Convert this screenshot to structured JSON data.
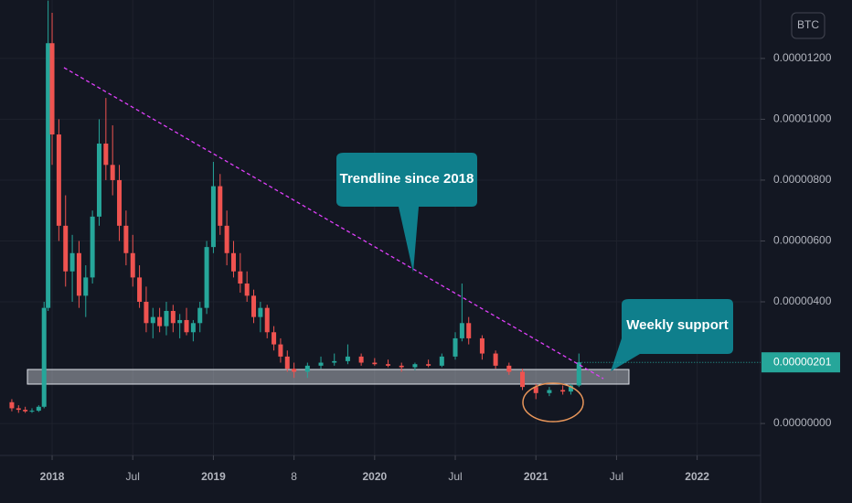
{
  "chart_data": {
    "type": "candlestick",
    "symbol": "BTC",
    "x": [
      -3,
      -2.5,
      -2,
      -1.5,
      -1,
      -0.6,
      -0.3,
      0,
      0.5,
      1,
      1.5,
      2,
      2.5,
      3,
      3.5,
      4,
      4.5,
      5,
      5.5,
      6,
      6.5,
      7,
      7.5,
      8,
      8.5,
      9,
      9.5,
      10,
      10.5,
      11,
      11.5,
      12,
      12.5,
      13,
      13.5,
      14,
      14.5,
      15,
      15.5,
      16,
      16.5,
      17,
      17.5,
      18,
      19,
      20,
      21,
      22,
      23,
      24,
      25,
      26,
      27,
      28,
      29,
      30,
      30.5,
      31,
      32,
      33,
      34,
      35,
      36,
      37,
      38,
      38.6,
      39.2
    ],
    "open": [
      7e-07,
      5e-07,
      4.5e-07,
      4e-07,
      4.2e-07,
      5.5e-07,
      3.8e-06,
      1.25e-05,
      9.5e-06,
      6.5e-06,
      5e-06,
      5.6e-06,
      4.2e-06,
      4.8e-06,
      6.8e-06,
      9.2e-06,
      8.5e-06,
      8e-06,
      6.5e-06,
      5.6e-06,
      4.8e-06,
      4e-06,
      3.3e-06,
      3.5e-06,
      3.2e-06,
      3.7e-06,
      3.3e-06,
      3.4e-06,
      3e-06,
      3.3e-06,
      3.8e-06,
      5.8e-06,
      7.8e-06,
      6.5e-06,
      5.6e-06,
      5e-06,
      4.6e-06,
      4.2e-06,
      3.5e-06,
      3.8e-06,
      3e-06,
      2.6e-06,
      2.2e-06,
      1.8e-06,
      1.7e-06,
      1.9e-06,
      2e-06,
      2.05e-06,
      2.2e-06,
      2e-06,
      1.95e-06,
      1.9e-06,
      1.85e-06,
      1.95e-06,
      1.9e-06,
      2.2e-06,
      2.8e-06,
      3.3e-06,
      2.8e-06,
      2.3e-06,
      1.9e-06,
      1.7e-06,
      1.2e-06,
      1e-06,
      1.1e-06,
      1.05e-06,
      1.25e-06
    ],
    "high": [
      8e-07,
      6e-07,
      5.5e-07,
      5e-07,
      6e-07,
      4e-06,
      1.39e-05,
      1.35e-05,
      1e-05,
      7.5e-06,
      6.2e-06,
      6e-06,
      5.2e-06,
      7e-06,
      1e-05,
      1.07e-05,
      9.8e-06,
      8.5e-06,
      7e-06,
      6.2e-06,
      5.2e-06,
      4.5e-06,
      3.8e-06,
      3.8e-06,
      4e-06,
      3.9e-06,
      3.6e-06,
      3.8e-06,
      3.4e-06,
      4e-06,
      6e-06,
      8.6e-06,
      8.2e-06,
      7e-06,
      6e-06,
      5.6e-06,
      5e-06,
      4.4e-06,
      4e-06,
      3.9e-06,
      3.2e-06,
      2.8e-06,
      2.4e-06,
      2e-06,
      2e-06,
      2.2e-06,
      2.3e-06,
      2.6e-06,
      2.3e-06,
      2.15e-06,
      2.1e-06,
      2e-06,
      2e-06,
      2.1e-06,
      2.3e-06,
      3e-06,
      4.6e-06,
      3.5e-06,
      2.9e-06,
      2.4e-06,
      2e-06,
      1.8e-06,
      1.3e-06,
      1.2e-06,
      1.25e-06,
      1.3e-06,
      2.3e-06
    ],
    "low": [
      4e-07,
      3.5e-07,
      3.5e-07,
      3.5e-07,
      3.8e-07,
      5e-07,
      3.7e-06,
      8.5e-06,
      6e-06,
      4.5e-06,
      4e-06,
      3.8e-06,
      3.5e-06,
      4.6e-06,
      6.5e-06,
      8e-06,
      7.5e-06,
      6e-06,
      5.2e-06,
      4.5e-06,
      3.8e-06,
      3e-06,
      2.8e-06,
      3e-06,
      2.9e-06,
      3e-06,
      2.8e-06,
      2.9e-06,
      2.7e-06,
      3e-06,
      3.6e-06,
      5.6e-06,
      6.2e-06,
      5.2e-06,
      4.8e-06,
      4.3e-06,
      4e-06,
      3.3e-06,
      3e-06,
      2.8e-06,
      2.4e-06,
      2e-06,
      1.7e-06,
      1.5e-06,
      1.5e-06,
      1.8e-06,
      1.9e-06,
      1.95e-06,
      1.9e-06,
      1.9e-06,
      1.85e-06,
      1.7e-06,
      1.75e-06,
      1.85e-06,
      1.85e-06,
      2.1e-06,
      2.7e-06,
      2.6e-06,
      2.1e-06,
      1.8e-06,
      1.6e-06,
      1.1e-06,
      8e-07,
      9e-07,
      9.5e-07,
      9.5e-07,
      1.2e-06
    ],
    "close": [
      5e-07,
      4.5e-07,
      4e-07,
      4.2e-07,
      5.5e-07,
      3.8e-06,
      1.25e-05,
      9.5e-06,
      6.5e-06,
      5e-06,
      5.6e-06,
      4.2e-06,
      4.8e-06,
      6.8e-06,
      9.2e-06,
      8.5e-06,
      8e-06,
      6.5e-06,
      5.6e-06,
      4.8e-06,
      4e-06,
      3.3e-06,
      3.5e-06,
      3.2e-06,
      3.7e-06,
      3.3e-06,
      3.4e-06,
      3e-06,
      3.3e-06,
      3.8e-06,
      5.8e-06,
      7.8e-06,
      6.5e-06,
      5.6e-06,
      5e-06,
      4.6e-06,
      4.2e-06,
      3.5e-06,
      3.8e-06,
      3e-06,
      2.6e-06,
      2.2e-06,
      1.8e-06,
      1.7e-06,
      1.9e-06,
      2e-06,
      2.05e-06,
      2.2e-06,
      2e-06,
      1.95e-06,
      1.9e-06,
      1.85e-06,
      1.95e-06,
      1.9e-06,
      2.2e-06,
      2.8e-06,
      3.3e-06,
      2.8e-06,
      2.3e-06,
      1.9e-06,
      1.7e-06,
      1.2e-06,
      1e-06,
      1.1e-06,
      1.05e-06,
      1.25e-06,
      2.01e-06
    ],
    "up_color": "#26a69a",
    "down_color": "#ef5350",
    "xlim": [
      -3.88,
      52.72
    ],
    "xticks": [
      {
        "value": 0,
        "label": "2018"
      },
      {
        "value": 6,
        "label": "Jul"
      },
      {
        "value": 12,
        "label": "2019"
      },
      {
        "value": 18,
        "label": "8"
      },
      {
        "value": 24,
        "label": "2020"
      },
      {
        "value": 30,
        "label": "Jul"
      },
      {
        "value": 36,
        "label": "2021"
      },
      {
        "value": 42,
        "label": "Jul"
      },
      {
        "value": 48,
        "label": "2022"
      }
    ],
    "ylim": [
      -1.05e-06,
      1.392e-05
    ],
    "yticks": [
      {
        "value": 0,
        "label": "0.00000000"
      },
      {
        "value": 4e-06,
        "label": "0.00000400"
      },
      {
        "value": 6e-06,
        "label": "0.00000600"
      },
      {
        "value": 8e-06,
        "label": "0.00000800"
      },
      {
        "value": 1e-05,
        "label": "0.00001000"
      },
      {
        "value": 1.2e-05,
        "label": "0.00001200"
      }
    ],
    "current_price": {
      "value": 2.01e-06,
      "label": "0.00000201"
    },
    "annotations": [
      "Trendline since 2018",
      "Weekly support"
    ],
    "grid": true
  }
}
